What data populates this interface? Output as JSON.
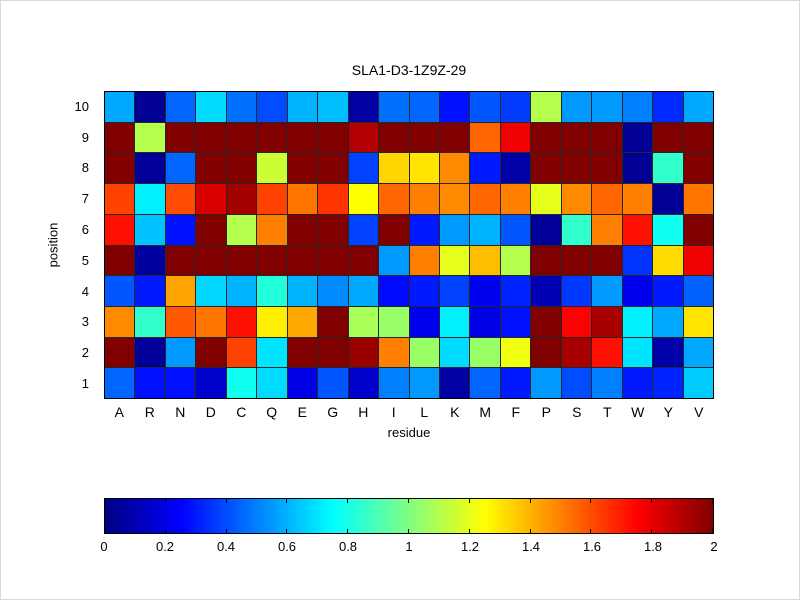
{
  "chart_data": {
    "type": "heatmap",
    "title": "SLA1-D3-1Z9Z-29",
    "xlabel": "residue",
    "ylabel": "position",
    "x_categories": [
      "A",
      "R",
      "N",
      "D",
      "C",
      "Q",
      "E",
      "G",
      "H",
      "I",
      "L",
      "K",
      "M",
      "F",
      "P",
      "S",
      "T",
      "W",
      "Y",
      "V"
    ],
    "y_categories": [
      "10",
      "9",
      "8",
      "7",
      "6",
      "5",
      "4",
      "3",
      "2",
      "1"
    ],
    "values": [
      [
        0.58,
        0.04,
        0.45,
        0.68,
        0.47,
        0.4,
        0.6,
        0.62,
        0.07,
        0.47,
        0.45,
        0.28,
        0.42,
        0.37,
        1.1,
        0.55,
        0.55,
        0.5,
        0.33,
        0.58
      ],
      [
        2.0,
        1.1,
        2.0,
        2.0,
        2.0,
        2.0,
        2.0,
        2.0,
        1.9,
        2.0,
        2.0,
        2.0,
        1.55,
        1.78,
        2.0,
        2.0,
        2.0,
        0.04,
        2.0,
        2.0
      ],
      [
        2.0,
        0.05,
        0.45,
        2.0,
        2.0,
        1.15,
        2.0,
        2.0,
        0.38,
        1.33,
        1.3,
        1.48,
        0.3,
        0.08,
        2.0,
        2.0,
        2.0,
        0.04,
        0.85,
        2.0
      ],
      [
        1.62,
        0.72,
        1.6,
        1.82,
        1.93,
        1.62,
        1.52,
        1.65,
        1.25,
        1.55,
        1.5,
        1.48,
        1.55,
        1.5,
        1.2,
        1.48,
        1.55,
        1.5,
        0.04,
        1.52
      ],
      [
        1.72,
        0.63,
        0.28,
        2.0,
        1.1,
        1.5,
        2.0,
        2.0,
        0.38,
        2.0,
        0.3,
        0.55,
        0.6,
        0.42,
        0.05,
        0.85,
        1.5,
        1.72,
        0.78,
        2.0
      ],
      [
        2.0,
        0.06,
        2.0,
        2.0,
        2.0,
        2.0,
        2.0,
        2.0,
        2.0,
        0.55,
        1.5,
        1.2,
        1.38,
        1.1,
        2.0,
        2.0,
        2.0,
        0.35,
        1.32,
        1.78
      ],
      [
        0.42,
        0.3,
        1.43,
        0.67,
        0.6,
        0.82,
        0.6,
        0.52,
        0.58,
        0.27,
        0.3,
        0.38,
        0.22,
        0.32,
        0.1,
        0.36,
        0.55,
        0.22,
        0.3,
        0.44
      ],
      [
        1.48,
        0.85,
        1.58,
        1.52,
        1.72,
        1.28,
        1.42,
        2.0,
        1.08,
        1.05,
        0.22,
        0.72,
        0.2,
        0.28,
        2.0,
        1.75,
        1.92,
        0.72,
        0.58,
        1.3
      ],
      [
        2.0,
        0.05,
        0.55,
        2.0,
        1.62,
        0.7,
        2.0,
        2.0,
        1.95,
        1.5,
        1.05,
        0.68,
        1.05,
        1.22,
        2.0,
        1.92,
        1.72,
        0.7,
        0.08,
        0.58
      ],
      [
        0.45,
        0.28,
        0.28,
        0.15,
        0.78,
        0.68,
        0.2,
        0.42,
        0.15,
        0.5,
        0.55,
        0.07,
        0.45,
        0.3,
        0.55,
        0.4,
        0.5,
        0.3,
        0.32,
        0.65
      ]
    ],
    "vmin": 0,
    "vmax": 2,
    "colormap": "jet",
    "grid": true,
    "colorbar": {
      "orientation": "horizontal",
      "position": "bottom",
      "tick_labels": [
        "0",
        "0.2",
        "0.4",
        "0.6",
        "0.8",
        "1",
        "1.2",
        "1.4",
        "1.6",
        "1.8",
        "2"
      ],
      "tick_values": [
        0,
        0.2,
        0.4,
        0.6,
        0.8,
        1,
        1.2,
        1.4,
        1.6,
        1.8,
        2
      ]
    },
    "colors": {
      "grid_line": "#262626",
      "plot_border": "#000000",
      "background": "#ffffff",
      "text": "#000000"
    }
  }
}
